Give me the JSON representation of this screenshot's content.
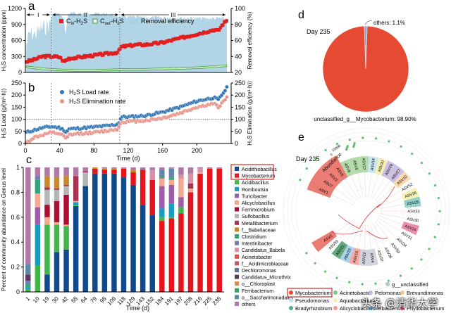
{
  "chart_data": [
    {
      "panel": "a",
      "type": "line",
      "xlim": [
        0,
        240
      ],
      "ylim": [
        0,
        1200
      ],
      "ylabel": "H2S concentration (ppm)",
      "ylabel2": "Removal efficiency (%)",
      "ylim2": [
        20,
        100
      ],
      "yticks": [
        0,
        300,
        600,
        900,
        1200
      ],
      "yticks2": [
        20,
        40,
        60,
        80,
        100
      ],
      "phases": [
        {
          "label": "I",
          "start": 0,
          "end": 30
        },
        {
          "label": "II",
          "start": 30,
          "end": 110
        },
        {
          "label": "III",
          "start": 110,
          "end": 240
        }
      ],
      "legend": [
        "Cin-H2S",
        "Cout-H2S",
        "Removal efficiency"
      ],
      "series": [
        {
          "name": "Cin-H2S",
          "color": "#e02020",
          "x": [
            0,
            10,
            20,
            30,
            40,
            45,
            50,
            60,
            70,
            80,
            90,
            100,
            108,
            112,
            120,
            130,
            140,
            150,
            160,
            170,
            180,
            190,
            200,
            210,
            220,
            225,
            230,
            235
          ],
          "y": [
            200,
            240,
            300,
            300,
            290,
            200,
            260,
            280,
            300,
            320,
            340,
            360,
            380,
            480,
            500,
            520,
            520,
            540,
            560,
            600,
            640,
            680,
            720,
            760,
            800,
            780,
            900,
            980
          ]
        },
        {
          "name": "Cout-H2S",
          "color": "#3a9a3a",
          "x": [
            0,
            20,
            40,
            60,
            80,
            100,
            120,
            140,
            160,
            180,
            200,
            220,
            235
          ],
          "y": [
            100,
            60,
            40,
            30,
            30,
            40,
            50,
            50,
            60,
            70,
            80,
            100,
            120
          ]
        },
        {
          "name": "Removal efficiency",
          "color": "#a8cfe3",
          "x": [
            0,
            5,
            10,
            20,
            30,
            35,
            40,
            45,
            47,
            50,
            60,
            80,
            100,
            110,
            120,
            140,
            160,
            180,
            200,
            220,
            235
          ],
          "y": [
            60,
            80,
            78,
            86,
            92,
            96,
            95,
            88,
            70,
            96,
            96,
            96,
            95,
            93,
            92,
            91,
            91,
            91,
            90,
            90,
            90
          ]
        }
      ]
    },
    {
      "panel": "b",
      "type": "scatter",
      "xlim": [
        0,
        240
      ],
      "xticks": [
        0,
        40,
        80,
        120,
        160,
        200
      ],
      "xlabel": "Time (d)",
      "ylim": [
        0,
        250
      ],
      "yticks": [
        0,
        50,
        100,
        150,
        200,
        250
      ],
      "ylabel": "H2S Load (g/(m3·h))",
      "ylabel2": "H2S Elimination (g/(m3·h))",
      "reference_line": 100,
      "series": [
        {
          "name": "H2S Load rate",
          "color": "#2f74b5",
          "x": [
            0,
            10,
            20,
            30,
            40,
            45,
            48,
            50,
            60,
            80,
            100,
            108,
            112,
            120,
            140,
            160,
            180,
            200,
            220,
            225,
            235
          ],
          "y": [
            45,
            55,
            65,
            70,
            65,
            55,
            45,
            60,
            62,
            68,
            75,
            80,
            110,
            110,
            115,
            130,
            150,
            175,
            190,
            180,
            230
          ]
        },
        {
          "name": "H2S Elimination rate",
          "color": "#e8938a",
          "x": [
            0,
            10,
            20,
            30,
            40,
            45,
            48,
            50,
            60,
            80,
            100,
            108,
            112,
            120,
            140,
            160,
            180,
            200,
            220,
            225,
            235
          ],
          "y": [
            0,
            25,
            35,
            45,
            40,
            30,
            15,
            35,
            40,
            45,
            55,
            60,
            90,
            90,
            95,
            105,
            125,
            150,
            165,
            150,
            190
          ]
        }
      ]
    },
    {
      "panel": "c",
      "type": "bar",
      "stacked": true,
      "xlabel": "Time (d)",
      "ylabel": "Percent of community abundance on Genus level",
      "ylim": [
        0,
        1
      ],
      "yticks": [
        0,
        0.2,
        0.4,
        0.6,
        0.8,
        1
      ],
      "categories": [
        "1",
        "10",
        "19",
        "30",
        "42",
        "55",
        "64",
        "79",
        "95",
        "109",
        "118",
        "129",
        "143",
        "152",
        "184",
        "191",
        "197",
        "208",
        "216",
        "225",
        "235"
      ],
      "legend": [
        {
          "name": "Acidithiobacillus",
          "color": "#0f4a8c"
        },
        {
          "name": "Mycobacterium",
          "color": "#e8141c"
        },
        {
          "name": "Acidibacillus",
          "color": "#43b649"
        },
        {
          "name": "Romboutsia",
          "color": "#1a9cbc"
        },
        {
          "name": "Turicibacter",
          "color": "#9a5fa8"
        },
        {
          "name": "Alicyclobacillus",
          "color": "#f5a890"
        },
        {
          "name": "Ferrimicrobium",
          "color": "#ad0f32"
        },
        {
          "name": "Sulfobacillus",
          "color": "#b3b6b7"
        },
        {
          "name": "Metallibacterium",
          "color": "#a63352"
        },
        {
          "name": "f__Babeliaceae",
          "color": "#c98a25"
        },
        {
          "name": "Clostridium",
          "color": "#35a47a"
        },
        {
          "name": "Intestinibacter",
          "color": "#6f7fb0"
        },
        {
          "name": "Candidatus_Babela",
          "color": "#d990a8"
        },
        {
          "name": "Acinetobacter",
          "color": "#d9564c"
        },
        {
          "name": "f__Acidimicrobiaceae",
          "color": "#c25a6a"
        },
        {
          "name": "Dechloromonas",
          "color": "#5a6e9a"
        },
        {
          "name": "Candidatus_Microthrix",
          "color": "#5c3a5e"
        },
        {
          "name": "o__Chloroplast",
          "color": "#e08a4e"
        },
        {
          "name": "Ferribacterium",
          "color": "#3fa06a"
        },
        {
          "name": "o__Saccharimonadales",
          "color": "#5f88a8"
        },
        {
          "name": "others",
          "color": "#b07aa6"
        }
      ],
      "series": [
        {
          "name": "Acidithiobacillus",
          "values": [
            0,
            0,
            0.14,
            0.32,
            0.34,
            0.69,
            0.85,
            0.95,
            0.95,
            0.95,
            0.92,
            0.86,
            0.7,
            0.62,
            0,
            0,
            0,
            0,
            0,
            0,
            0
          ]
        },
        {
          "name": "Mycobacterium",
          "values": [
            0,
            0,
            0,
            0,
            0,
            0,
            0,
            0.04,
            0.03,
            0.03,
            0.07,
            0.1,
            0.28,
            0.28,
            0.57,
            0.59,
            0.63,
            0.8,
            0.95,
            0.99,
            0.99
          ]
        },
        {
          "name": "Acidibacillus",
          "values": [
            0.02,
            0.21,
            0.4,
            0.22,
            0.19,
            0.01,
            0,
            0,
            0,
            0,
            0,
            0,
            0,
            0,
            0.03,
            0.01,
            0.05,
            0,
            0,
            0,
            0
          ]
        },
        {
          "name": "Romboutsia",
          "values": [
            0.01,
            0.33,
            0,
            0,
            0,
            0.02,
            0,
            0,
            0,
            0,
            0,
            0,
            0,
            0,
            0.07,
            0.11,
            0,
            0,
            0,
            0,
            0
          ]
        },
        {
          "name": "Turicibacter",
          "values": [
            0,
            0.14,
            0,
            0,
            0,
            0,
            0,
            0,
            0,
            0,
            0,
            0,
            0,
            0,
            0.18,
            0.15,
            0.08,
            0,
            0,
            0,
            0
          ]
        },
        {
          "name": "Alicyclobacillus",
          "values": [
            0,
            0.11,
            0.06,
            0.02,
            0.01,
            0.01,
            0,
            0,
            0,
            0,
            0,
            0,
            0,
            0,
            0.06,
            0.04,
            0.15,
            0.03,
            0.01,
            0,
            0
          ]
        },
        {
          "name": "Ferrimicrobium",
          "values": [
            0,
            0,
            0.1,
            0.17,
            0.24,
            0,
            0,
            0,
            0,
            0,
            0,
            0,
            0,
            0,
            0,
            0,
            0,
            0,
            0,
            0,
            0
          ]
        },
        {
          "name": "Sulfobacillus",
          "values": [
            0,
            0,
            0.12,
            0.09,
            0.07,
            0,
            0.11,
            0,
            0,
            0,
            0,
            0,
            0,
            0,
            0,
            0,
            0,
            0,
            0,
            0,
            0
          ]
        },
        {
          "name": "Metallibacterium",
          "values": [
            0,
            0,
            0.02,
            0.01,
            0.01,
            0.2,
            0.01,
            0,
            0,
            0,
            0,
            0,
            0,
            0,
            0,
            0,
            0,
            0.04,
            0,
            0,
            0
          ]
        },
        {
          "name": "f__Babeliaceae",
          "values": [
            0,
            0,
            0.09,
            0.09,
            0.07,
            0,
            0,
            0.01,
            0.01,
            0.01,
            0,
            0.02,
            0,
            0,
            0,
            0,
            0,
            0,
            0,
            0,
            0
          ]
        },
        {
          "name": "Clostridium",
          "values": [
            0.03,
            0.11,
            0,
            0,
            0,
            0,
            0,
            0,
            0,
            0,
            0,
            0,
            0,
            0,
            0.01,
            0.02,
            0,
            0,
            0,
            0,
            0
          ]
        },
        {
          "name": "Intestinibacter",
          "values": [
            0.03,
            0.03,
            0,
            0,
            0,
            0,
            0,
            0,
            0,
            0,
            0,
            0,
            0,
            0,
            0.02,
            0.04,
            0,
            0,
            0,
            0,
            0
          ]
        },
        {
          "name": "Candidatus_Babela",
          "values": [
            0,
            0,
            0,
            0,
            0,
            0,
            0,
            0,
            0,
            0,
            0,
            0,
            0,
            0.08,
            0,
            0,
            0.03,
            0.08,
            0.03,
            0,
            0
          ]
        },
        {
          "name": "Candidatus_Microthrix",
          "values": [
            0.05,
            0,
            0,
            0,
            0,
            0,
            0,
            0,
            0,
            0,
            0,
            0,
            0,
            0,
            0,
            0,
            0,
            0,
            0,
            0,
            0
          ]
        },
        {
          "name": "o__Saccharimonadales",
          "values": [
            0.08,
            0,
            0,
            0,
            0,
            0,
            0,
            0,
            0,
            0,
            0,
            0,
            0,
            0,
            0.04,
            0.03,
            0,
            0,
            0,
            0,
            0
          ]
        },
        {
          "name": "others",
          "values": [
            0.78,
            0.07,
            0.07,
            0.08,
            0.07,
            0.07,
            0.03,
            0,
            0.01,
            0.01,
            0.01,
            0.02,
            0.02,
            0.02,
            0.02,
            0.01,
            0.06,
            0.05,
            0.01,
            0.01,
            0.01
          ]
        }
      ]
    },
    {
      "panel": "d",
      "type": "pie",
      "title": "Day 235",
      "slices": [
        {
          "label": "unclassified_g__Mycobacterium",
          "value": 98.9,
          "display": "unclassified_g__Mycobacterium: 98.90%",
          "color": "#e64a33"
        },
        {
          "label": "others",
          "value": 1.1,
          "display": "others: 1.1%",
          "color": "#8ca6d4"
        }
      ]
    },
    {
      "panel": "e",
      "type": "tree",
      "title": "Day 235",
      "abundance_label": "Abundance",
      "abundance_ticks": [
        "0",
        "15000"
      ],
      "leaves": [
        {
          "label": "ASV1",
          "color": "#e8655a"
        },
        {
          "label": "ASV7",
          "color": "#e8655a"
        },
        {
          "label": "ASV3",
          "color": "#e8655a"
        },
        {
          "label": "ASV6",
          "color": "#e8655a"
        },
        {
          "label": "ASV8",
          "color": "#a9d59b"
        },
        {
          "label": "ASV5",
          "color": "#a9d59b"
        },
        {
          "label": "ASV17",
          "color": "#a9d59b"
        },
        {
          "label": "ASV14",
          "color": "#bfe2ee"
        },
        {
          "label": "ASV20",
          "color": "#f4efa9"
        },
        {
          "label": "ASV19",
          "color": "#c3b5dc"
        },
        {
          "label": "ASV27",
          "color": "#c3b5dc"
        },
        {
          "label": "ASV10",
          "color": "#f9d3a0"
        },
        {
          "label": "ASV52",
          "color": "#ffffff"
        },
        {
          "label": "ASV26",
          "color": "#f4efa9"
        },
        {
          "label": "ASV25",
          "color": "#7fc9bf"
        },
        {
          "label": "ASV33",
          "color": "#ffffff"
        },
        {
          "label": "ASV30",
          "color": "#ffffff"
        },
        {
          "label": "ASV24",
          "color": "#e77aa0"
        },
        {
          "label": "ASV31",
          "color": "#ffffff"
        },
        {
          "label": "ASV34",
          "color": "#ffffff"
        },
        {
          "label": "ASV50",
          "color": "#ffffff"
        },
        {
          "label": "ASV36",
          "color": "#ffffff"
        },
        {
          "label": "ASV37",
          "color": "#ffffff"
        },
        {
          "label": "ASV4",
          "color": "#c9ccd6"
        },
        {
          "label": "ASV22",
          "color": "#c9ccd6"
        },
        {
          "label": "ASV16",
          "color": "#f29a90"
        },
        {
          "label": "ASV23",
          "color": "#9ccbe8"
        },
        {
          "label": "ASV21",
          "color": "#4a9a6a"
        },
        {
          "label": "ASV55",
          "color": "#ffffff"
        },
        {
          "label": "ASV2",
          "color": "#e8655a"
        }
      ],
      "legend": [
        {
          "name": "g__unclassified",
          "color": "#b9c3cf"
        },
        {
          "name": "Mycobacterium",
          "color": "#e64a33",
          "highlighted": true
        },
        {
          "name": "Acinetobacter",
          "color": "#7fc98f"
        },
        {
          "name": "Pelomonas",
          "color": "#c0b8e0"
        },
        {
          "name": "Brevundimonas",
          "color": "#f4c98a"
        },
        {
          "name": "Pseudomonas",
          "color": "#b8e2ee"
        },
        {
          "name": "Aquabacterium",
          "color": "#f4efa9"
        },
        {
          "name": "Bradyrhizobium",
          "color": "#4aaa9a"
        },
        {
          "name": "Alicyclobacillus",
          "color": "#f29a90"
        },
        {
          "name": "Ilelbacterium",
          "color": "#4a90c8"
        },
        {
          "name": "Phyllobacterium",
          "color": "#d84a80"
        }
      ]
    }
  ],
  "panels": {
    "a": {
      "letter": "a",
      "phase_labels": [
        "I",
        "II",
        "III"
      ],
      "legend_cin": "Cin-H2S",
      "legend_cout": "Cout-H2S",
      "legend_re": "Removal efficiency",
      "ylabel": "H₂S concentration (ppm)",
      "ylabel2": "Removal efficiency (%)"
    },
    "b": {
      "letter": "b",
      "legend_load": "H₂S Load rate",
      "legend_elim": "H₂S Elimination rate",
      "ylabel": "H₂S Load (g/(m³·h))",
      "ylabel2": "H₂S Elimination (g/(m³·h))",
      "xlabel": "Time (d)"
    },
    "c": {
      "letter": "c",
      "xlabel": "Time (d)",
      "ylabel": "Percent of community abundance on Genus level"
    },
    "d": {
      "letter": "d",
      "title": "Day 235",
      "others_label": "others: 1.1%",
      "main_label": "unclassified_g__Mycobacterium: 98.90%"
    },
    "e": {
      "letter": "e",
      "title": "Day 235",
      "abundance": "Abundance",
      "tick0": "0",
      "tick1": "15000"
    }
  },
  "watermark": "头条 @清华大学"
}
